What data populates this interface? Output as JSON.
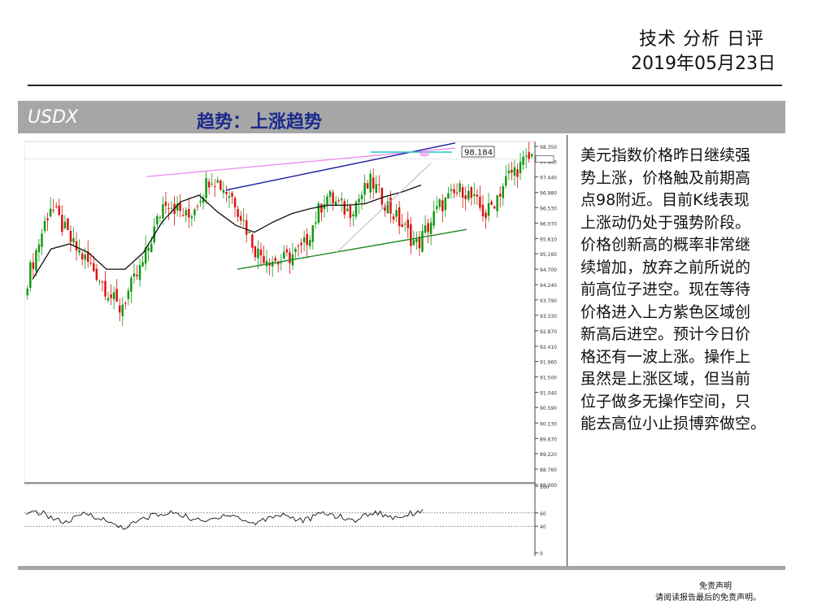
{
  "header": {
    "title": "技术 分析 日评",
    "date": "2019年05月23日"
  },
  "banner": {
    "symbol": "USDX",
    "trend": "趋势：上涨趋势"
  },
  "commentary": "美元指数价格昨日继续强\n势上涨，价格触及前期高\n点98附近。目前K线表现\n上涨动仍处于强势阶段。\n价格创新高的概率非常继\n续增加，放弃之前所说的\n前高位子进空。现在等待\n价格进入上方紫色区域创\n新高后进空。预计今日价\n格还有一波上涨。操作上\n虽然是上涨区域，但当前\n位子做多无操作空间，只\n能去高位小止损博弈做空。",
  "disclaimer": {
    "title": "免责声明",
    "text": "请阅读报告最后的免责声明。"
  },
  "chart_data": [
    {
      "type": "candlestick",
      "price_label": "98.184",
      "last_price": 97.98,
      "y_ticks": [
        "98.350",
        "97.900",
        "97.440",
        "96.980",
        "96.530",
        "96.070",
        "95.610",
        "95.160",
        "94.700",
        "94.240",
        "93.790",
        "93.330",
        "92.870",
        "92.410",
        "91.960",
        "91.500",
        "91.040",
        "90.590",
        "90.130",
        "89.670",
        "89.220",
        "88.760",
        "88.300"
      ],
      "ylim": [
        88.3,
        98.35
      ],
      "colors": {
        "up": "#119911",
        "down": "#dd1111",
        "ma": "#111111",
        "upper_channel": "#1a1aa0",
        "lower_channel": "#228822",
        "pink_resistance": "#ee88ee",
        "cyan_level": "#33cccc",
        "support_gray": "#bbbbbb"
      },
      "close_anchors": [
        94.4,
        96.6,
        95.4,
        94.6,
        93.5,
        94.8,
        96.8,
        96.2,
        97.5,
        96.8,
        95.2,
        94.9,
        95.3,
        96.9,
        96.4,
        97.3,
        96.3,
        95.4,
        96.6,
        97.1,
        96.3,
        97.5,
        98.05
      ],
      "ma_anchors": [
        94.4,
        95.3,
        95.45,
        95.2,
        94.7,
        94.7,
        95.2,
        96.1,
        96.7,
        96.9,
        96.4,
        96.0,
        95.8,
        96.1,
        96.35,
        96.5,
        96.6,
        96.6,
        96.65,
        96.85,
        97.0,
        97.2
      ]
    },
    {
      "type": "line",
      "name": "",
      "y_ticks": [
        "100",
        "60",
        "40",
        "0"
      ],
      "ylim": [
        0,
        100
      ],
      "levels": [
        60,
        40
      ],
      "values": [
        55,
        62,
        58,
        50,
        45,
        52,
        60,
        55,
        48,
        42,
        38,
        45,
        52,
        58,
        56,
        62,
        55,
        50,
        46,
        52,
        58,
        56,
        48,
        44,
        50,
        56,
        58,
        52,
        48,
        54,
        60,
        57,
        52,
        48,
        55,
        61,
        58,
        53,
        56,
        60,
        64
      ]
    }
  ]
}
